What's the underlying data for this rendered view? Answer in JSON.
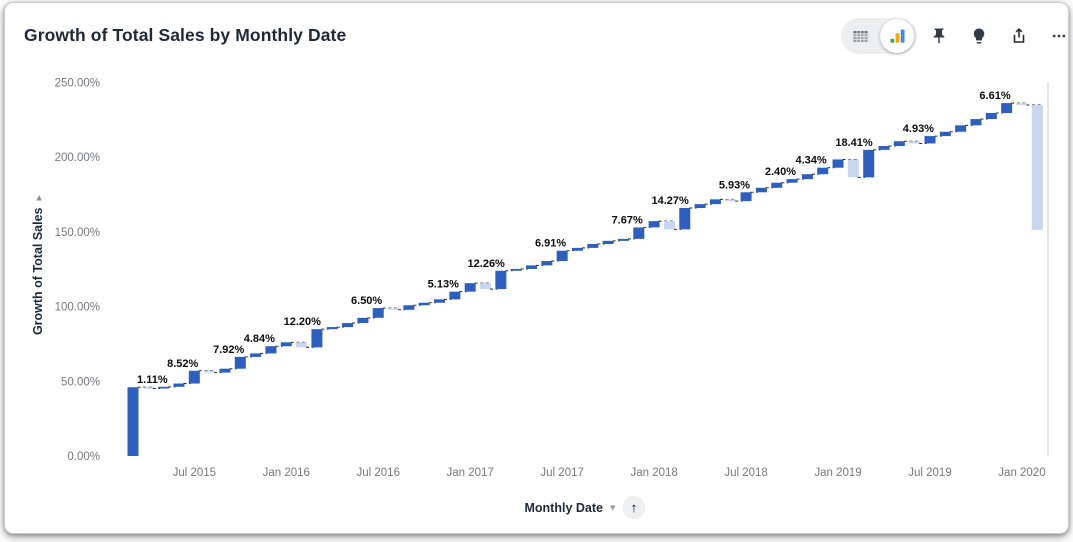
{
  "header": {
    "title": "Growth of Total Sales by Monthly Date"
  },
  "toolbar": {
    "view_toggle": {
      "selected": "chart",
      "options": [
        "table",
        "chart"
      ]
    },
    "buttons": [
      "pin",
      "insights",
      "share",
      "more"
    ]
  },
  "icons": {
    "caret_down": "▾",
    "sort_ascending": "↑",
    "axis_caret": "▸"
  },
  "x_axis_control": {
    "label": "Monthly Date",
    "sort": "ascending"
  },
  "chart_data": {
    "type": "waterfall",
    "title": "Growth of Total Sales by Monthly Date",
    "xlabel": "Monthly Date",
    "ylabel": "Growth of Total Sales",
    "legend": "none",
    "grid": "off",
    "y_axis": {
      "min": 0,
      "max": 250,
      "ticks": [
        {
          "value": 0,
          "label": "0.00%"
        },
        {
          "value": 50,
          "label": "50.00%"
        },
        {
          "value": 100,
          "label": "100.00%"
        },
        {
          "value": 150,
          "label": "150.00%"
        },
        {
          "value": 200,
          "label": "200.00%"
        },
        {
          "value": 250,
          "label": "250.00%"
        }
      ]
    },
    "x_ticks": [
      {
        "month_index": 4,
        "label": "Jul 2015"
      },
      {
        "month_index": 10,
        "label": "Jan 2016"
      },
      {
        "month_index": 16,
        "label": "Jul 2016"
      },
      {
        "month_index": 22,
        "label": "Jan 2017"
      },
      {
        "month_index": 28,
        "label": "Jul 2017"
      },
      {
        "month_index": 34,
        "label": "Jan 2018"
      },
      {
        "month_index": 40,
        "label": "Jul 2018"
      },
      {
        "month_index": 46,
        "label": "Jan 2019"
      },
      {
        "month_index": 52,
        "label": "Jul 2019"
      },
      {
        "month_index": 58,
        "label": "Jan 2020"
      }
    ],
    "colors": {
      "increase": "#2D5FC0",
      "decrease": "#C8D6EF",
      "connector": "#2b2b2b",
      "data_label": "#0b0b0b",
      "axis_text": "#75797d",
      "right_border": "#d6d9dc"
    },
    "series": [
      {
        "month": "Mar 2015",
        "change_pct": 46.0,
        "data_label": null
      },
      {
        "month": "Apr 2015",
        "change_pct": -0.8,
        "data_label": null
      },
      {
        "month": "May 2015",
        "change_pct": 1.11,
        "data_label": "1.11%"
      },
      {
        "month": "Jun 2015",
        "change_pct": 2.2,
        "data_label": null
      },
      {
        "month": "Jul 2015",
        "change_pct": 8.52,
        "data_label": "8.52%"
      },
      {
        "month": "Aug 2015",
        "change_pct": -1.2,
        "data_label": null
      },
      {
        "month": "Sep 2015",
        "change_pct": 2.6,
        "data_label": null
      },
      {
        "month": "Oct 2015",
        "change_pct": 7.92,
        "data_label": "7.92%"
      },
      {
        "month": "Nov 2015",
        "change_pct": 2.3,
        "data_label": null
      },
      {
        "month": "Dec 2015",
        "change_pct": 4.84,
        "data_label": "4.84%"
      },
      {
        "month": "Jan 2016",
        "change_pct": 2.6,
        "data_label": null
      },
      {
        "month": "Feb 2016",
        "change_pct": -3.4,
        "data_label": null
      },
      {
        "month": "Mar 2016",
        "change_pct": 12.2,
        "data_label": "12.20%"
      },
      {
        "month": "Apr 2016",
        "change_pct": 1.4,
        "data_label": null
      },
      {
        "month": "May 2016",
        "change_pct": 2.7,
        "data_label": null
      },
      {
        "month": "Jun 2016",
        "change_pct": 3.5,
        "data_label": null
      },
      {
        "month": "Jul 2016",
        "change_pct": 6.5,
        "data_label": "6.50%"
      },
      {
        "month": "Aug 2016",
        "change_pct": -1.1,
        "data_label": null
      },
      {
        "month": "Sep 2016",
        "change_pct": 3.0,
        "data_label": null
      },
      {
        "month": "Oct 2016",
        "change_pct": 1.7,
        "data_label": null
      },
      {
        "month": "Nov 2016",
        "change_pct": 2.27,
        "data_label": null
      },
      {
        "month": "Dec 2016",
        "change_pct": 5.13,
        "data_label": "5.13%"
      },
      {
        "month": "Jan 2017",
        "change_pct": 5.7,
        "data_label": null
      },
      {
        "month": "Feb 2017",
        "change_pct": -3.96,
        "data_label": null
      },
      {
        "month": "Mar 2017",
        "change_pct": 12.26,
        "data_label": "12.26%"
      },
      {
        "month": "Apr 2017",
        "change_pct": 1.2,
        "data_label": null
      },
      {
        "month": "May 2017",
        "change_pct": 2.4,
        "data_label": null
      },
      {
        "month": "Jun 2017",
        "change_pct": 2.9,
        "data_label": null
      },
      {
        "month": "Jul 2017",
        "change_pct": 6.91,
        "data_label": "6.91%"
      },
      {
        "month": "Aug 2017",
        "change_pct": 1.9,
        "data_label": null
      },
      {
        "month": "Sep 2017",
        "change_pct": 2.6,
        "data_label": null
      },
      {
        "month": "Oct 2017",
        "change_pct": 2.1,
        "data_label": null
      },
      {
        "month": "Nov 2017",
        "change_pct": 1.32,
        "data_label": null
      },
      {
        "month": "Dec 2017",
        "change_pct": 7.67,
        "data_label": "7.67%"
      },
      {
        "month": "Jan 2018",
        "change_pct": 4.23,
        "data_label": null
      },
      {
        "month": "Feb 2018",
        "change_pct": -5.5,
        "data_label": null
      },
      {
        "month": "Mar 2018",
        "change_pct": 14.27,
        "data_label": "14.27%"
      },
      {
        "month": "Apr 2018",
        "change_pct": 2.6,
        "data_label": null
      },
      {
        "month": "May 2018",
        "change_pct": 3.2,
        "data_label": null
      },
      {
        "month": "Jun 2018",
        "change_pct": -1.2,
        "data_label": null
      },
      {
        "month": "Jul 2018",
        "change_pct": 5.93,
        "data_label": "5.93%"
      },
      {
        "month": "Aug 2018",
        "change_pct": 3.0,
        "data_label": null
      },
      {
        "month": "Sep 2018",
        "change_pct": 3.4,
        "data_label": null
      },
      {
        "month": "Oct 2018",
        "change_pct": 2.4,
        "data_label": "2.40%"
      },
      {
        "month": "Nov 2018",
        "change_pct": 3.3,
        "data_label": null
      },
      {
        "month": "Dec 2018",
        "change_pct": 4.34,
        "data_label": "4.34%"
      },
      {
        "month": "Jan 2019",
        "change_pct": 5.53,
        "data_label": null
      },
      {
        "month": "Feb 2019",
        "change_pct": -12.0,
        "data_label": null
      },
      {
        "month": "Mar 2019",
        "change_pct": 18.41,
        "data_label": "18.41%"
      },
      {
        "month": "Apr 2019",
        "change_pct": 2.6,
        "data_label": null
      },
      {
        "month": "May 2019",
        "change_pct": 3.2,
        "data_label": null
      },
      {
        "month": "Jun 2019",
        "change_pct": -1.5,
        "data_label": null
      },
      {
        "month": "Jul 2019",
        "change_pct": 4.93,
        "data_label": "4.93%"
      },
      {
        "month": "Aug 2019",
        "change_pct": 2.9,
        "data_label": null
      },
      {
        "month": "Sep 2019",
        "change_pct": 4.3,
        "data_label": null
      },
      {
        "month": "Oct 2019",
        "change_pct": 4.2,
        "data_label": null
      },
      {
        "month": "Nov 2019",
        "change_pct": 4.06,
        "data_label": null
      },
      {
        "month": "Dec 2019",
        "change_pct": 6.61,
        "data_label": "6.61%"
      },
      {
        "month": "Jan 2020",
        "change_pct": -1.3,
        "data_label": null
      },
      {
        "month": "Feb 2020",
        "change_pct": -83.5,
        "data_label": null
      }
    ]
  }
}
